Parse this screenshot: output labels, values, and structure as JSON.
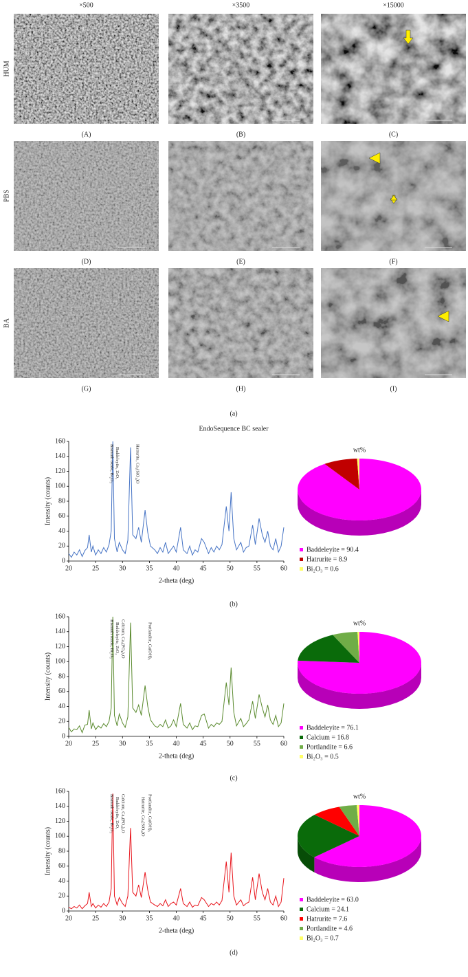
{
  "figure": {
    "column_headers": [
      "×500",
      "×3500",
      "×15000"
    ],
    "row_labels": [
      "HUM",
      "PBS",
      "BA"
    ],
    "panel_labels": [
      "(A)",
      "(B)",
      "(C)",
      "(D)",
      "(E)",
      "(F)",
      "(G)",
      "(H)",
      "(I)"
    ],
    "part_labels": [
      "(a)",
      "(b)",
      "(c)",
      "(d)"
    ],
    "section_title": "EndoSequence BC sealer"
  },
  "chart_data": [
    {
      "type": "line",
      "xlabel": "2-theta (deg)",
      "ylabel": "Intensity (counts)",
      "xlim": [
        20,
        60
      ],
      "ylim": [
        0,
        160
      ],
      "xticks": [
        20,
        25,
        30,
        35,
        40,
        45,
        50,
        55,
        60
      ],
      "yticks": [
        0,
        20,
        40,
        60,
        80,
        100,
        120,
        140,
        160
      ],
      "x": [
        20,
        20.5,
        21,
        21.5,
        22,
        22.5,
        23,
        23.5,
        23.8,
        24.2,
        24.5,
        25,
        25.5,
        26,
        26.5,
        27,
        27.5,
        27.9,
        28.2,
        28.5,
        29,
        29.4,
        30,
        30.5,
        31,
        31.5,
        31.9,
        32.5,
        33,
        33.5,
        34.2,
        34.7,
        35.2,
        36,
        36.5,
        37,
        37.5,
        38,
        38.5,
        39,
        39.5,
        40,
        40.8,
        41.3,
        42,
        42.5,
        43,
        43.5,
        44,
        44.7,
        45.2,
        46,
        46.5,
        47,
        47.5,
        48,
        48.5,
        49.3,
        49.8,
        50.2,
        50.7,
        51.2,
        52,
        52.5,
        53,
        53.5,
        54.2,
        54.7,
        55.4,
        56,
        56.5,
        57,
        57.5,
        58,
        58.5,
        59,
        59.5,
        60
      ],
      "series": [
        {
          "color": "#4472c4",
          "values": [
            10,
            5,
            12,
            8,
            15,
            6,
            14,
            18,
            35,
            12,
            20,
            8,
            15,
            10,
            18,
            12,
            22,
            40,
            160,
            30,
            12,
            25,
            15,
            10,
            28,
            152,
            35,
            30,
            45,
            25,
            68,
            38,
            20,
            15,
            10,
            18,
            12,
            25,
            10,
            15,
            20,
            12,
            45,
            15,
            10,
            20,
            8,
            15,
            12,
            30,
            25,
            10,
            18,
            12,
            20,
            15,
            22,
            73,
            40,
            92,
            30,
            15,
            25,
            12,
            18,
            20,
            48,
            22,
            57,
            35,
            25,
            40,
            20,
            15,
            30,
            12,
            20,
            45
          ]
        }
      ],
      "annotations": [
        {
          "text": "Bismuth oxide, Bi₂O₃",
          "x": 27.6
        },
        {
          "text": "Baddeleyite, ZrO₂",
          "x": 28.6
        },
        {
          "text": "Hatrurite, Ca₃(SiO₄)O",
          "x": 32.4
        }
      ]
    },
    {
      "type": "pie",
      "title": "wt%",
      "categories": [
        "Baddeleyite",
        "Hatrurite",
        "Bi₂O₃"
      ],
      "values": [
        90.4,
        8.9,
        0.6
      ],
      "value_labels": [
        "Baddeleyite = 90.4",
        "Hatrurite = 8.9",
        "Bi₂O₃ = 0.6"
      ],
      "colors": [
        "#ff00ff",
        "#c00000",
        "#ffff66"
      ]
    },
    {
      "type": "line",
      "xlabel": "2-theta (deg)",
      "ylabel": "Intensity (counts)",
      "xlim": [
        20,
        60
      ],
      "ylim": [
        0,
        160
      ],
      "xticks": [
        20,
        25,
        30,
        35,
        40,
        45,
        50,
        55,
        60
      ],
      "yticks": [
        0,
        20,
        40,
        60,
        80,
        100,
        120,
        140,
        160
      ],
      "x": [
        20,
        20.5,
        21,
        21.5,
        22,
        22.5,
        23,
        23.5,
        23.8,
        24.2,
        24.5,
        25,
        25.5,
        26,
        26.5,
        27,
        27.5,
        27.9,
        28.2,
        28.5,
        29,
        29.4,
        30,
        30.5,
        31,
        31.5,
        31.9,
        32.5,
        33,
        33.5,
        34.2,
        34.7,
        35.2,
        36,
        36.5,
        37,
        37.5,
        38,
        38.5,
        39,
        39.5,
        40,
        40.8,
        41.3,
        42,
        42.5,
        43,
        43.5,
        44,
        44.7,
        45.2,
        46,
        46.5,
        47,
        47.5,
        48,
        48.5,
        49.3,
        49.8,
        50.2,
        50.7,
        51.2,
        52,
        52.5,
        53,
        53.5,
        54.2,
        54.7,
        55.4,
        56,
        56.5,
        57,
        57.5,
        58,
        58.5,
        59,
        59.5,
        60
      ],
      "series": [
        {
          "color": "#5a8a2e",
          "values": [
            12,
            6,
            10,
            9,
            14,
            5,
            15,
            16,
            35,
            10,
            18,
            9,
            14,
            11,
            17,
            13,
            20,
            38,
            160,
            28,
            14,
            30,
            18,
            12,
            26,
            152,
            38,
            32,
            42,
            28,
            68,
            40,
            22,
            14,
            12,
            16,
            13,
            22,
            11,
            14,
            22,
            13,
            44,
            16,
            11,
            18,
            9,
            14,
            13,
            28,
            30,
            11,
            16,
            13,
            18,
            16,
            20,
            72,
            42,
            92,
            32,
            14,
            24,
            13,
            17,
            22,
            47,
            24,
            56,
            38,
            26,
            42,
            22,
            16,
            28,
            13,
            18,
            44
          ]
        }
      ],
      "annotations": [
        {
          "text": "Bismuth oxide, Bi₂O₃",
          "x": 27.6
        },
        {
          "text": "Baddeleyite, ZrO₂",
          "x": 28.6
        },
        {
          "text": "Calcium, Ca₃(PO₄)₂O",
          "x": 29.7
        },
        {
          "text": "Portlandite, Ca(OH)₂",
          "x": 34.7
        }
      ]
    },
    {
      "type": "pie",
      "title": "wt%",
      "categories": [
        "Baddeleyite",
        "Calcium",
        "Portlandite",
        "Bi₂O₃"
      ],
      "values": [
        76.1,
        16.8,
        6.6,
        0.5
      ],
      "value_labels": [
        "Baddeleyite = 76.1",
        "Calcium = 16.8",
        "Portlandite = 6.6",
        "Bi₂O₃ = 0.5"
      ],
      "colors": [
        "#ff00ff",
        "#0a6b0a",
        "#70ad47",
        "#ffff66"
      ]
    },
    {
      "type": "line",
      "xlabel": "2-theta (deg)",
      "ylabel": "Intensity (counts)",
      "xlim": [
        20,
        60
      ],
      "ylim": [
        0,
        160
      ],
      "xticks": [
        20,
        25,
        30,
        35,
        40,
        45,
        50,
        55,
        60
      ],
      "yticks": [
        0,
        20,
        40,
        60,
        80,
        100,
        120,
        140,
        160
      ],
      "x": [
        20,
        20.5,
        21,
        21.5,
        22,
        22.5,
        23,
        23.5,
        23.8,
        24.2,
        24.5,
        25,
        25.5,
        26,
        26.5,
        27,
        27.5,
        27.9,
        28.2,
        28.5,
        29,
        29.4,
        30,
        30.5,
        31,
        31.5,
        31.9,
        32.5,
        33,
        33.5,
        34.2,
        34.7,
        35.2,
        36,
        36.5,
        37,
        37.5,
        38,
        38.5,
        39,
        39.5,
        40,
        40.8,
        41.3,
        42,
        42.5,
        43,
        43.5,
        44,
        44.7,
        45.2,
        46,
        46.5,
        47,
        47.5,
        48,
        48.5,
        49.3,
        49.8,
        50.2,
        50.7,
        51.2,
        52,
        52.5,
        53,
        53.5,
        54.2,
        54.7,
        55.4,
        56,
        56.5,
        57,
        57.5,
        58,
        58.5,
        59,
        59.5,
        60
      ],
      "series": [
        {
          "color": "#e8141b",
          "values": [
            5,
            3,
            6,
            4,
            8,
            3,
            7,
            10,
            25,
            6,
            10,
            4,
            8,
            5,
            10,
            6,
            12,
            30,
            157,
            20,
            8,
            18,
            10,
            6,
            20,
            111,
            25,
            20,
            35,
            18,
            52,
            28,
            12,
            8,
            6,
            10,
            7,
            15,
            6,
            10,
            12,
            8,
            30,
            10,
            6,
            12,
            5,
            8,
            7,
            18,
            15,
            6,
            10,
            8,
            12,
            8,
            14,
            66,
            25,
            78,
            20,
            8,
            15,
            7,
            10,
            12,
            45,
            15,
            50,
            25,
            15,
            30,
            12,
            8,
            20,
            6,
            12,
            44
          ]
        }
      ],
      "annotations": [
        {
          "text": "Bismuth oxide, Bi₂O₃",
          "x": 27.6
        },
        {
          "text": "Baddeleyite, ZrO₂",
          "x": 28.6
        },
        {
          "text": "Calcium, Ca₃(PO₄)₂O",
          "x": 29.7
        },
        {
          "text": "Hatrurite, Ca₃(SiO₄)O",
          "x": 33.4
        },
        {
          "text": "Portlandite, Ca(OH)₂",
          "x": 34.7
        }
      ]
    },
    {
      "type": "pie",
      "title": "wt%",
      "categories": [
        "Baddeleyite",
        "Calcium",
        "Hatrurite",
        "Portlandite",
        "Bi₂O₃"
      ],
      "values": [
        63.0,
        24.1,
        7.6,
        4.6,
        0.7
      ],
      "value_labels": [
        "Baddeleyite = 63.0",
        "Calcium = 24.1",
        "Hatrurite = 7.6",
        "Portlandite = 4.6",
        "Bi₂O₃ = 0.7"
      ],
      "colors": [
        "#ff00ff",
        "#0a6b0a",
        "#ff0000",
        "#70ad47",
        "#ffff66"
      ]
    }
  ]
}
